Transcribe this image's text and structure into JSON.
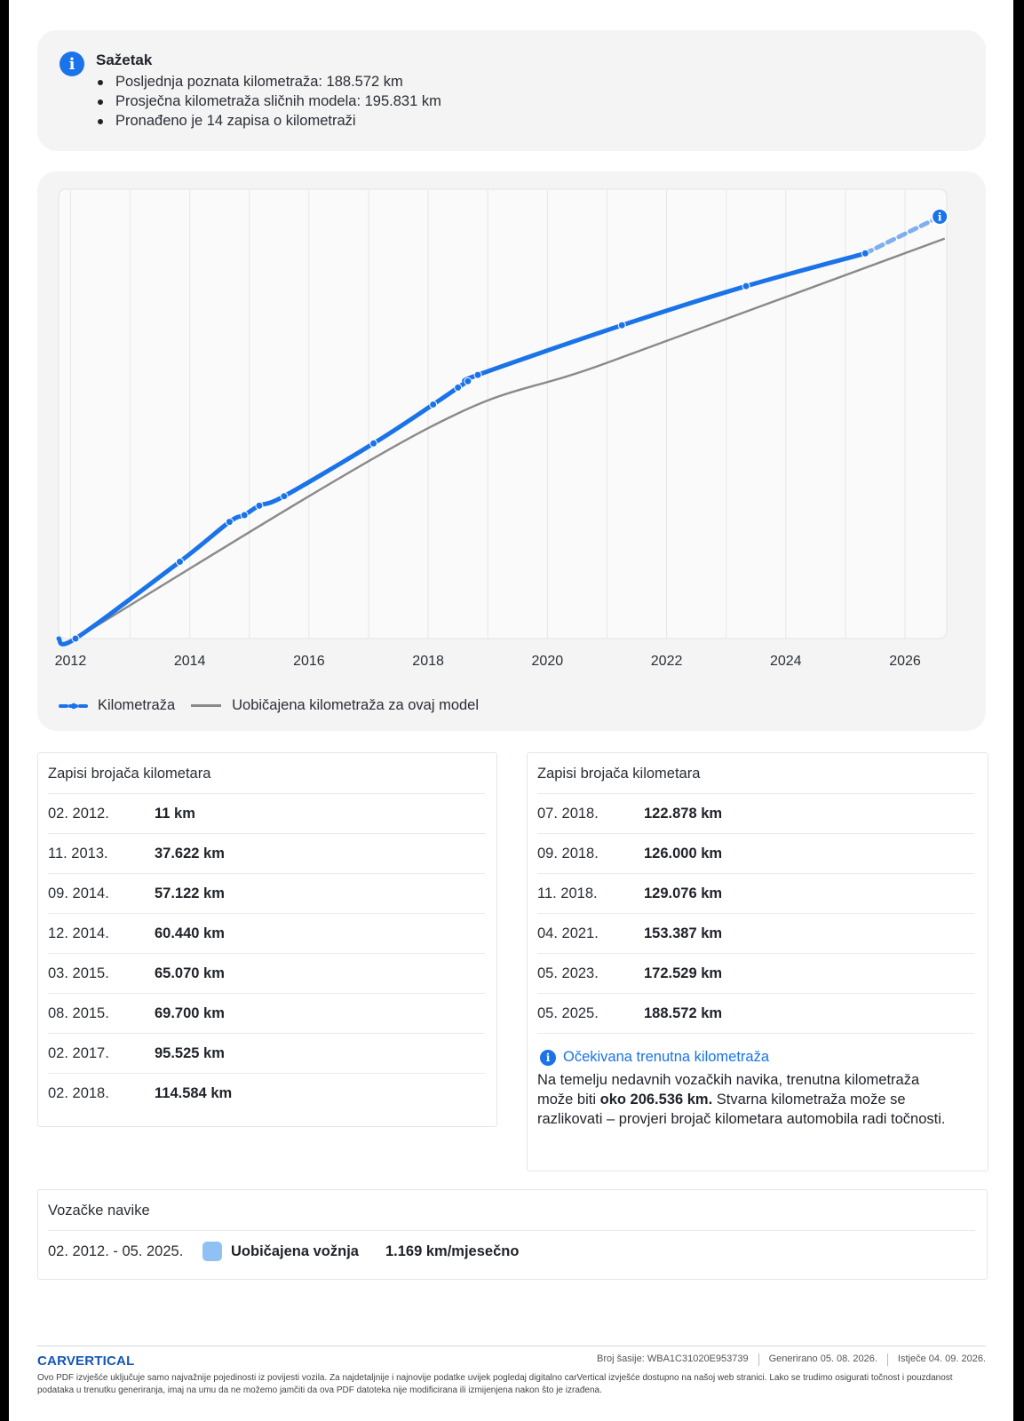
{
  "summary": {
    "title": "Sažetak",
    "items": [
      "Posljednja poznata kilometraža: 188.572 km",
      "Prosječna kilometraža sličnih modela: 195.831 km",
      "Pronađeno je 14 zapisa o kilometraži"
    ]
  },
  "chart_data": {
    "type": "line",
    "x_ticks": [
      "2012",
      "2014",
      "2016",
      "2018",
      "2020",
      "2022",
      "2024",
      "2026"
    ],
    "xlim": [
      2011.8,
      2026.7
    ],
    "ylim": [
      0,
      220000
    ],
    "grid": true,
    "legend_position": "bottom-left",
    "series": [
      {
        "name": "Kilometraža",
        "color": "#1a73e8",
        "style": "line-with-dots",
        "points": [
          {
            "x": "02. 2012.",
            "y": 11
          },
          {
            "x": "11. 2013.",
            "y": 37622
          },
          {
            "x": "09. 2014.",
            "y": 57122
          },
          {
            "x": "12. 2014.",
            "y": 60440
          },
          {
            "x": "03. 2015.",
            "y": 65070
          },
          {
            "x": "08. 2015.",
            "y": 69700
          },
          {
            "x": "02. 2017.",
            "y": 95525
          },
          {
            "x": "02. 2018.",
            "y": 114584
          },
          {
            "x": "07. 2018.",
            "y": 122878
          },
          {
            "x": "09. 2018.",
            "y": 126000
          },
          {
            "x": "11. 2018.",
            "y": 129076
          },
          {
            "x": "04. 2021.",
            "y": 153387
          },
          {
            "x": "05. 2023.",
            "y": 172529
          },
          {
            "x": "05. 2025.",
            "y": 188572
          }
        ],
        "projection": {
          "x": "08. 2026.",
          "y": 206536
        }
      },
      {
        "name": "Uobičajena kilometraža za ovaj model",
        "color": "#8a8a8a",
        "style": "line",
        "points": [
          {
            "x": "02. 2012.",
            "y": 0
          },
          {
            "x": "01. 2018.",
            "y": 103000
          },
          {
            "x": "01. 2021.",
            "y": 135000
          },
          {
            "x": "09. 2026.",
            "y": 195831
          }
        ]
      }
    ]
  },
  "left_table": {
    "title": "Zapisi brojača kilometara",
    "rows": [
      {
        "date": "02. 2012.",
        "km": "11 km"
      },
      {
        "date": "11. 2013.",
        "km": "37.622 km"
      },
      {
        "date": "09. 2014.",
        "km": "57.122 km"
      },
      {
        "date": "12. 2014.",
        "km": "60.440 km"
      },
      {
        "date": "03. 2015.",
        "km": "65.070 km"
      },
      {
        "date": "08. 2015.",
        "km": "69.700 km"
      },
      {
        "date": "02. 2017.",
        "km": "95.525 km"
      },
      {
        "date": "02. 2018.",
        "km": "114.584 km"
      }
    ]
  },
  "right_table": {
    "title": "Zapisi brojača kilometara",
    "rows": [
      {
        "date": "07. 2018.",
        "km": "122.878 km"
      },
      {
        "date": "09. 2018.",
        "km": "126.000 km"
      },
      {
        "date": "11. 2018.",
        "km": "129.076 km"
      },
      {
        "date": "04. 2021.",
        "km": "153.387 km"
      },
      {
        "date": "05. 2023.",
        "km": "172.529 km"
      },
      {
        "date": "05. 2025.",
        "km": "188.572 km"
      }
    ],
    "expected": {
      "title": "Očekivana trenutna kilometraža",
      "text_before": "Na temelju nedavnih vozačkih navika, trenutna kilometraža može biti ",
      "value": "oko 206.536 km.",
      "text_after": " Stvarna kilometraža može se razlikovati – provjeri brojač kilometara automobila radi točnosti."
    }
  },
  "habits": {
    "title": "Vozačke navike",
    "range": "02. 2012. - 05. 2025.",
    "type": "Uobičajena vožnja",
    "rate": "1.169 km/mjesečno",
    "swatch_color": "#8fc1f5"
  },
  "footer": {
    "logo": "CARVERTICAL",
    "vin": "Broj šasije:  WBA1C31020E953739",
    "generated": "Generirano  05. 08. 2026.",
    "expires": "Istječe  04. 09. 2026.",
    "disclaimer": "Ovo PDF izvješće uključuje samo najvažnije pojedinosti iz povijesti vozila. Za najdetaljnije i najnovije podatke uvijek pogledaj digitalno carVertical izvješće dostupno na našoj web stranici. Lako se trudimo osigurati točnost i pouzdanost podataka u trenutku generiranja, imaj na umu da ne možemo jamčiti da ova PDF datoteka nije modificirana ili izmijenjena nakon što je izrađena."
  }
}
